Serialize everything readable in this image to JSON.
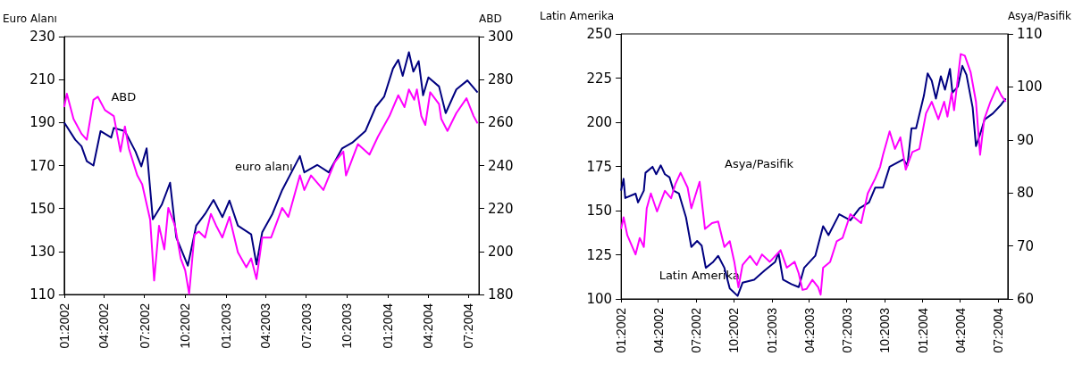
{
  "chart_data": [
    {
      "type": "line",
      "ylabel": "Euro Alanı",
      "y2label": "ABD",
      "grid": false,
      "legend": false,
      "xlim": [
        "2002-01-01",
        "2004-07-25"
      ],
      "xticks": [
        {
          "value": "2002-01-01",
          "label": "01:2002"
        },
        {
          "value": "2002-04-01",
          "label": "04:2002"
        },
        {
          "value": "2002-07-01",
          "label": "07:2002"
        },
        {
          "value": "2002-10-01",
          "label": "10:2002"
        },
        {
          "value": "2003-01-01",
          "label": "01:2003"
        },
        {
          "value": "2003-04-01",
          "label": "04:2003"
        },
        {
          "value": "2003-07-01",
          "label": "07:2003"
        },
        {
          "value": "2003-10-01",
          "label": "10:2003"
        },
        {
          "value": "2004-01-01",
          "label": "01:2004"
        },
        {
          "value": "2004-04-01",
          "label": "04:2004"
        },
        {
          "value": "2004-07-01",
          "label": "07:2004"
        }
      ],
      "ylim": [
        110,
        230
      ],
      "yticks": [
        110,
        130,
        150,
        170,
        190,
        210,
        230
      ],
      "y2lim": [
        180,
        300
      ],
      "y2ticks": [
        180,
        200,
        220,
        240,
        260,
        280,
        300
      ],
      "series": [
        {
          "name": "euro alanı",
          "color": "#000080",
          "x": [
            "2002-01-01",
            "2002-01-26",
            "2002-02-09",
            "2002-02-21",
            "2002-03-08",
            "2002-03-24",
            "2002-04-17",
            "2002-04-23",
            "2002-05-18",
            "2002-06-11",
            "2002-06-24",
            "2002-07-06",
            "2002-07-20",
            "2002-08-09",
            "2002-08-28",
            "2002-09-11",
            "2002-10-07",
            "2002-10-26",
            "2002-11-15",
            "2002-12-04",
            "2002-12-24",
            "2003-01-09",
            "2003-01-28",
            "2003-02-27",
            "2003-03-11",
            "2003-03-24",
            "2003-04-16",
            "2003-05-08",
            "2003-06-17",
            "2003-06-27",
            "2003-07-26",
            "2003-08-21",
            "2003-09-20",
            "2003-10-13",
            "2003-11-12",
            "2003-12-05",
            "2003-12-24",
            "2004-01-13",
            "2004-01-25",
            "2004-02-04",
            "2004-02-18",
            "2004-02-28",
            "2004-03-11",
            "2004-03-21",
            "2004-04-02",
            "2004-04-26",
            "2004-05-11",
            "2004-06-04",
            "2004-06-29",
            "2004-07-22"
          ],
          "values": [
            190,
            182,
            179,
            172,
            170,
            186,
            183,
            187.5,
            186,
            176.5,
            169.6,
            178,
            145,
            151.7,
            162,
            136.5,
            123.4,
            142,
            147.5,
            154,
            146,
            153.7,
            142,
            138,
            124,
            139,
            147.5,
            158.6,
            174.4,
            166.8,
            170.3,
            166.8,
            177.9,
            180.6,
            186.1,
            197.2,
            202,
            215.1,
            219.2,
            211.7,
            222.7,
            213.7,
            218.6,
            202.7,
            211,
            206.8,
            194.4,
            205.4,
            209.6,
            204
          ]
        },
        {
          "name": "ABD",
          "color": "#ff00ff",
          "axis": "y2",
          "x": [
            "2002-01-01",
            "2002-01-07",
            "2002-01-22",
            "2002-02-09",
            "2002-02-21",
            "2002-03-08",
            "2002-03-18",
            "2002-04-03",
            "2002-04-23",
            "2002-05-08",
            "2002-05-18",
            "2002-05-27",
            "2002-06-15",
            "2002-06-26",
            "2002-07-14",
            "2002-07-23",
            "2002-08-03",
            "2002-08-15",
            "2002-08-24",
            "2002-09-08",
            "2002-09-21",
            "2002-10-01",
            "2002-10-10",
            "2002-10-22",
            "2002-11-01",
            "2002-11-15",
            "2002-11-28",
            "2002-12-10",
            "2002-12-24",
            "2003-01-09",
            "2003-01-28",
            "2003-02-16",
            "2003-02-27",
            "2003-03-11",
            "2003-03-24",
            "2003-04-13",
            "2003-05-08",
            "2003-05-22",
            "2003-06-17",
            "2003-06-27",
            "2003-07-12",
            "2003-08-09",
            "2003-09-04",
            "2003-09-23",
            "2003-09-29",
            "2003-10-26",
            "2003-11-21",
            "2003-12-10",
            "2004-01-05",
            "2004-01-25",
            "2004-02-08",
            "2004-02-18",
            "2004-03-01",
            "2004-03-07",
            "2004-03-17",
            "2004-03-26",
            "2004-04-06",
            "2004-04-26",
            "2004-05-01",
            "2004-05-15",
            "2004-06-04",
            "2004-06-27",
            "2004-07-13",
            "2004-07-22"
          ],
          "values": [
            267.2,
            273.4,
            261.7,
            254.8,
            252,
            270.6,
            272,
            265.8,
            263,
            246.5,
            258.2,
            247.9,
            235.4,
            231.3,
            214.8,
            186.5,
            212,
            201,
            220.3,
            212,
            196.8,
            191.3,
            180.3,
            207.9,
            209.3,
            206.5,
            217.5,
            212,
            206.5,
            216.1,
            199.6,
            192.7,
            196.8,
            187.2,
            206.5,
            206.5,
            220.3,
            216.1,
            235.4,
            228.6,
            235.4,
            228.6,
            241.7,
            246.5,
            235.4,
            250,
            245.1,
            253.4,
            263,
            272.7,
            267.2,
            275.4,
            270.6,
            275.4,
            263,
            258.9,
            274.1,
            268.6,
            261.7,
            256.1,
            264.4,
            271.3,
            263,
            259.6
          ]
        }
      ]
    },
    {
      "type": "line",
      "ylabel": "Latin Amerika",
      "y2label": "Asya/Pasifik",
      "grid": false,
      "legend": false,
      "xlim": [
        "2002-01-01",
        "2004-07-25"
      ],
      "xticks": [
        {
          "value": "2002-01-01",
          "label": "01:2002"
        },
        {
          "value": "2002-04-01",
          "label": "04:2002"
        },
        {
          "value": "2002-07-01",
          "label": "07:2002"
        },
        {
          "value": "2002-10-01",
          "label": "10:2002"
        },
        {
          "value": "2003-01-01",
          "label": "01:2003"
        },
        {
          "value": "2003-04-01",
          "label": "04:2003"
        },
        {
          "value": "2003-07-01",
          "label": "07:2003"
        },
        {
          "value": "2003-10-01",
          "label": "10:2003"
        },
        {
          "value": "2004-01-01",
          "label": "01:2004"
        },
        {
          "value": "2004-04-01",
          "label": "04:2004"
        },
        {
          "value": "2004-07-01",
          "label": "07:2004"
        }
      ],
      "ylim": [
        100,
        250
      ],
      "yticks": [
        100,
        125,
        150,
        175,
        200,
        225,
        250
      ],
      "y2lim": [
        60,
        110
      ],
      "y2ticks": [
        60,
        70,
        80,
        90,
        100,
        110
      ],
      "series": [
        {
          "name": "Latin Amerika",
          "color": "#000080",
          "x": [
            "2002-01-01",
            "2002-01-07",
            "2002-01-11",
            "2002-02-05",
            "2002-02-11",
            "2002-02-25",
            "2002-03-01",
            "2002-03-18",
            "2002-03-27",
            "2002-04-07",
            "2002-04-17",
            "2002-04-28",
            "2002-05-08",
            "2002-05-21",
            "2002-06-07",
            "2002-06-20",
            "2002-07-04",
            "2002-07-15",
            "2002-07-25",
            "2002-08-12",
            "2002-08-24",
            "2002-09-08",
            "2002-09-21",
            "2002-10-10",
            "2002-10-22",
            "2002-11-19",
            "2002-12-14",
            "2003-01-09",
            "2003-01-17",
            "2003-01-28",
            "2003-02-17",
            "2003-03-07",
            "2003-03-20",
            "2003-04-16",
            "2003-05-05",
            "2003-05-18",
            "2003-06-13",
            "2003-07-10",
            "2003-08-01",
            "2003-08-24",
            "2003-09-08",
            "2003-09-27",
            "2003-10-13",
            "2003-11-15",
            "2003-11-25",
            "2003-12-05",
            "2003-12-16",
            "2004-01-04",
            "2004-01-13",
            "2004-01-23",
            "2004-02-02",
            "2004-02-14",
            "2004-02-24",
            "2004-03-07",
            "2004-03-13",
            "2004-03-26",
            "2004-04-06",
            "2004-04-16",
            "2004-05-01",
            "2004-05-09",
            "2004-05-19",
            "2004-05-30",
            "2004-06-19",
            "2004-07-09",
            "2004-07-20"
          ],
          "values": [
            161.3,
            168,
            157.1,
            159.6,
            154.6,
            161.3,
            171.4,
            174.8,
            170.6,
            175.6,
            170.6,
            168.9,
            161.3,
            159.6,
            146.2,
            129.4,
            132.8,
            130.2,
            117.6,
            121,
            124.4,
            117.6,
            105.9,
            101.7,
            109.2,
            110.9,
            116,
            121,
            126,
            110.9,
            108.4,
            106.7,
            117.6,
            124.4,
            141.2,
            136.1,
            147.9,
            144.5,
            151.3,
            154.6,
            163,
            163,
            174.8,
            179,
            175.6,
            196.6,
            196.6,
            215.1,
            227.7,
            223.5,
            213.4,
            226,
            218.4,
            230.2,
            216.7,
            220.1,
            231.9,
            226.8,
            208.3,
            186.5,
            193.2,
            201.6,
            205,
            210,
            213.4
          ]
        },
        {
          "name": "Asya/Pasifik",
          "color": "#ff00ff",
          "axis": "y2",
          "x": [
            "2002-01-01",
            "2002-01-07",
            "2002-01-16",
            "2002-02-05",
            "2002-02-15",
            "2002-02-25",
            "2002-03-04",
            "2002-03-14",
            "2002-03-29",
            "2002-04-17",
            "2002-05-02",
            "2002-05-12",
            "2002-05-25",
            "2002-06-11",
            "2002-06-20",
            "2002-07-10",
            "2002-07-23",
            "2002-08-09",
            "2002-08-24",
            "2002-09-08",
            "2002-09-21",
            "2002-10-02",
            "2002-10-12",
            "2002-10-22",
            "2002-11-09",
            "2002-11-25",
            "2002-12-08",
            "2002-12-27",
            "2003-01-22",
            "2003-02-06",
            "2003-02-25",
            "2003-03-07",
            "2003-03-16",
            "2003-03-26",
            "2003-04-09",
            "2003-04-23",
            "2003-04-29",
            "2003-05-05",
            "2003-05-22",
            "2003-06-07",
            "2003-06-21",
            "2003-07-10",
            "2003-08-05",
            "2003-08-21",
            "2003-09-08",
            "2003-09-20",
            "2003-09-27",
            "2003-10-13",
            "2003-10-26",
            "2003-11-08",
            "2003-11-21",
            "2003-12-07",
            "2003-12-24",
            "2004-01-09",
            "2004-01-23",
            "2004-02-08",
            "2004-02-22",
            "2004-03-01",
            "2004-03-11",
            "2004-03-17",
            "2004-04-02",
            "2004-04-12",
            "2004-04-26",
            "2004-05-09",
            "2004-05-15",
            "2004-05-19",
            "2004-05-29",
            "2004-06-13",
            "2004-06-29",
            "2004-07-09",
            "2004-07-20"
          ],
          "values": [
            73.2,
            75.4,
            72,
            68.4,
            71.5,
            69.8,
            77.1,
            79.9,
            76.5,
            80.4,
            79,
            81.6,
            83.8,
            81,
            77.1,
            82.1,
            73.2,
            74.3,
            74.6,
            69.8,
            70.9,
            67,
            62.2,
            66.4,
            68.1,
            66.4,
            68.4,
            67,
            69.2,
            65.9,
            67,
            64.8,
            61.7,
            61.9,
            63.6,
            62.2,
            60.8,
            65.9,
            67,
            70.9,
            71.5,
            76,
            74.3,
            79.9,
            82.7,
            84.9,
            87.2,
            91.6,
            88.3,
            90.5,
            84.4,
            87.7,
            88.3,
            95,
            97.2,
            93.9,
            97.2,
            94.4,
            98.9,
            95.6,
            106.2,
            105.9,
            102.8,
            97.2,
            91.1,
            87.2,
            93.9,
            97.2,
            100,
            98.4,
            97.2
          ]
        }
      ]
    }
  ]
}
